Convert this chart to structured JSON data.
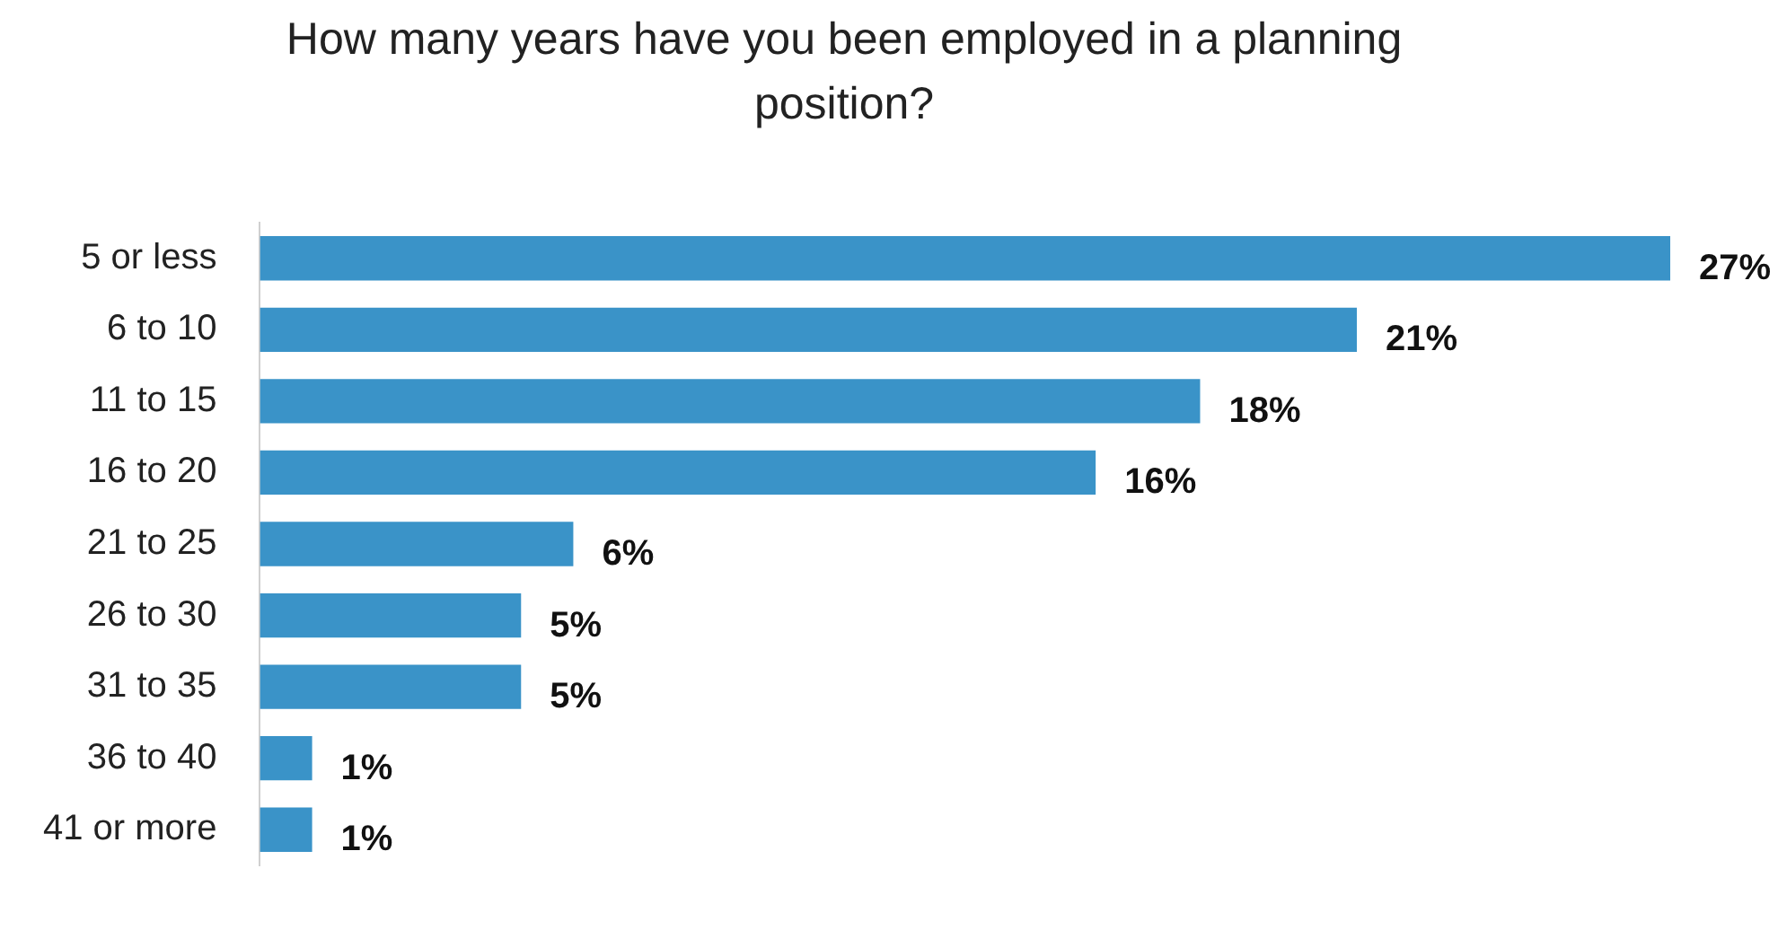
{
  "chart_data": {
    "type": "bar",
    "orientation": "horizontal",
    "title": "How many years have you been employed in a planning position?",
    "categories": [
      "5 or less",
      "6 to 10",
      "11 to 15",
      "16 to 20",
      "21 to 25",
      "26 to 30",
      "31 to 35",
      "36 to 40",
      "41 or more"
    ],
    "values": [
      27,
      21,
      18,
      16,
      6,
      5,
      5,
      1,
      1
    ],
    "value_labels": [
      "27%",
      "21%",
      "18%",
      "16%",
      "6%",
      "5%",
      "5%",
      "1%",
      "1%"
    ],
    "color": "#3a93c8",
    "grid": false,
    "legend": false
  }
}
